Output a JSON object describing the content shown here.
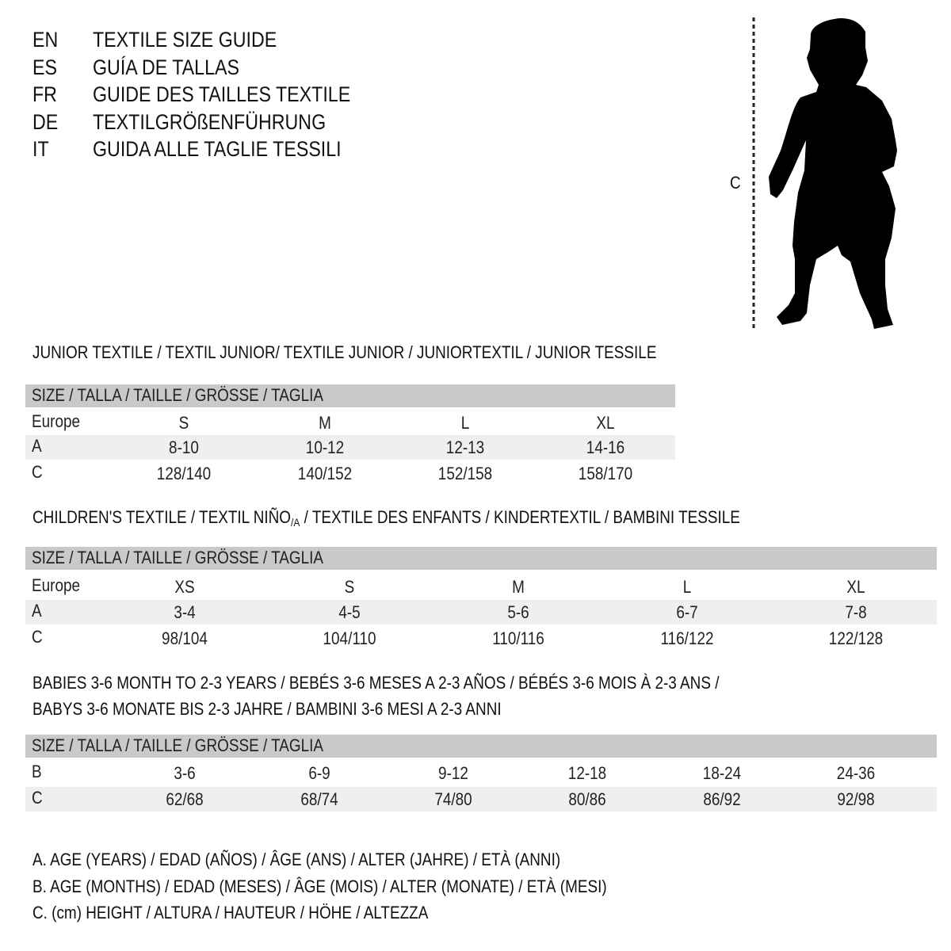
{
  "header": [
    {
      "code": "EN",
      "text": "TEXTILE SIZE GUIDE"
    },
    {
      "code": "ES",
      "text": "GUÍA DE TALLAS"
    },
    {
      "code": "FR",
      "text": "GUIDE DES TAILLES TEXTILE"
    },
    {
      "code": "DE",
      "text": "TEXTILGRÖßENFÜHRUNG"
    },
    {
      "code": "IT",
      "text": "GUIDA ALLE TAGLIE TESSILI"
    }
  ],
  "figure": {
    "measure_label": "C",
    "icon": "child-silhouette"
  },
  "junior": {
    "title": "JUNIOR TEXTILE / TEXTIL JUNIOR/ TEXTILE JUNIOR / JUNIORTEXTIL / JUNIOR TESSILE",
    "header": "SIZE / TALLA / TAILLE / GRÖSSE / TAGLIA",
    "rows": [
      {
        "label": "Europe",
        "values": [
          "S",
          "M",
          "L",
          "XL"
        ]
      },
      {
        "label": "A",
        "values": [
          "8-10",
          "10-12",
          "12-13",
          "14-16"
        ]
      },
      {
        "label": "C",
        "values": [
          "128/140",
          "140/152",
          "152/158",
          "158/170"
        ]
      }
    ]
  },
  "children": {
    "title_pre": "CHILDREN'S TEXTILE / TEXTIL NIÑO",
    "title_sub": "/A",
    "title_post": " / TEXTILE DES ENFANTS / KINDERTEXTIL / BAMBINI TESSILE",
    "header": "SIZE / TALLA / TAILLE / GRÖSSE / TAGLIA",
    "rows": [
      {
        "label": "Europe",
        "values": [
          "XS",
          "S",
          "M",
          "L",
          "XL"
        ]
      },
      {
        "label": "A",
        "values": [
          "3-4",
          "4-5",
          "5-6",
          "6-7",
          "7-8"
        ]
      },
      {
        "label": "C",
        "values": [
          "98/104",
          "104/110",
          "110/116",
          "116/122",
          "122/128"
        ]
      }
    ]
  },
  "babies": {
    "title_line1": "BABIES 3-6 MONTH TO 2-3 YEARS / BEBÉS 3-6 MESES A 2-3 AÑOS / BÉBÉS 3-6 MOIS À 2-3 ANS /",
    "title_line2": "BABYS 3-6 MONATE BIS 2-3 JAHRE / BAMBINI 3-6 MESI A 2-3 ANNI",
    "header": "SIZE / TALLA / TAILLE / GRÖSSE / TAGLIA",
    "rows": [
      {
        "label": "B",
        "values": [
          "3-6",
          "6-9",
          "9-12",
          "12-18",
          "18-24",
          "24-36"
        ]
      },
      {
        "label": "C",
        "values": [
          "62/68",
          "68/74",
          "74/80",
          "80/86",
          "86/92",
          "92/98"
        ]
      }
    ]
  },
  "legend": [
    "A. AGE (YEARS) / EDAD (AÑOS) / ÂGE (ANS) / ALTER (JAHRE) / ETÀ (ANNI)",
    "B. AGE (MONTHS) / EDAD (MESES) / ÂGE (MOIS) / ALTER (MONATE) / ETÀ (MESI)",
    "C. (cm) HEIGHT / ALTURA / HAUTEUR / HÖHE / ALTEZZA"
  ],
  "colors": {
    "header_row": "#c9c9c9",
    "alt_row": "#efefef",
    "text": "#111111"
  }
}
